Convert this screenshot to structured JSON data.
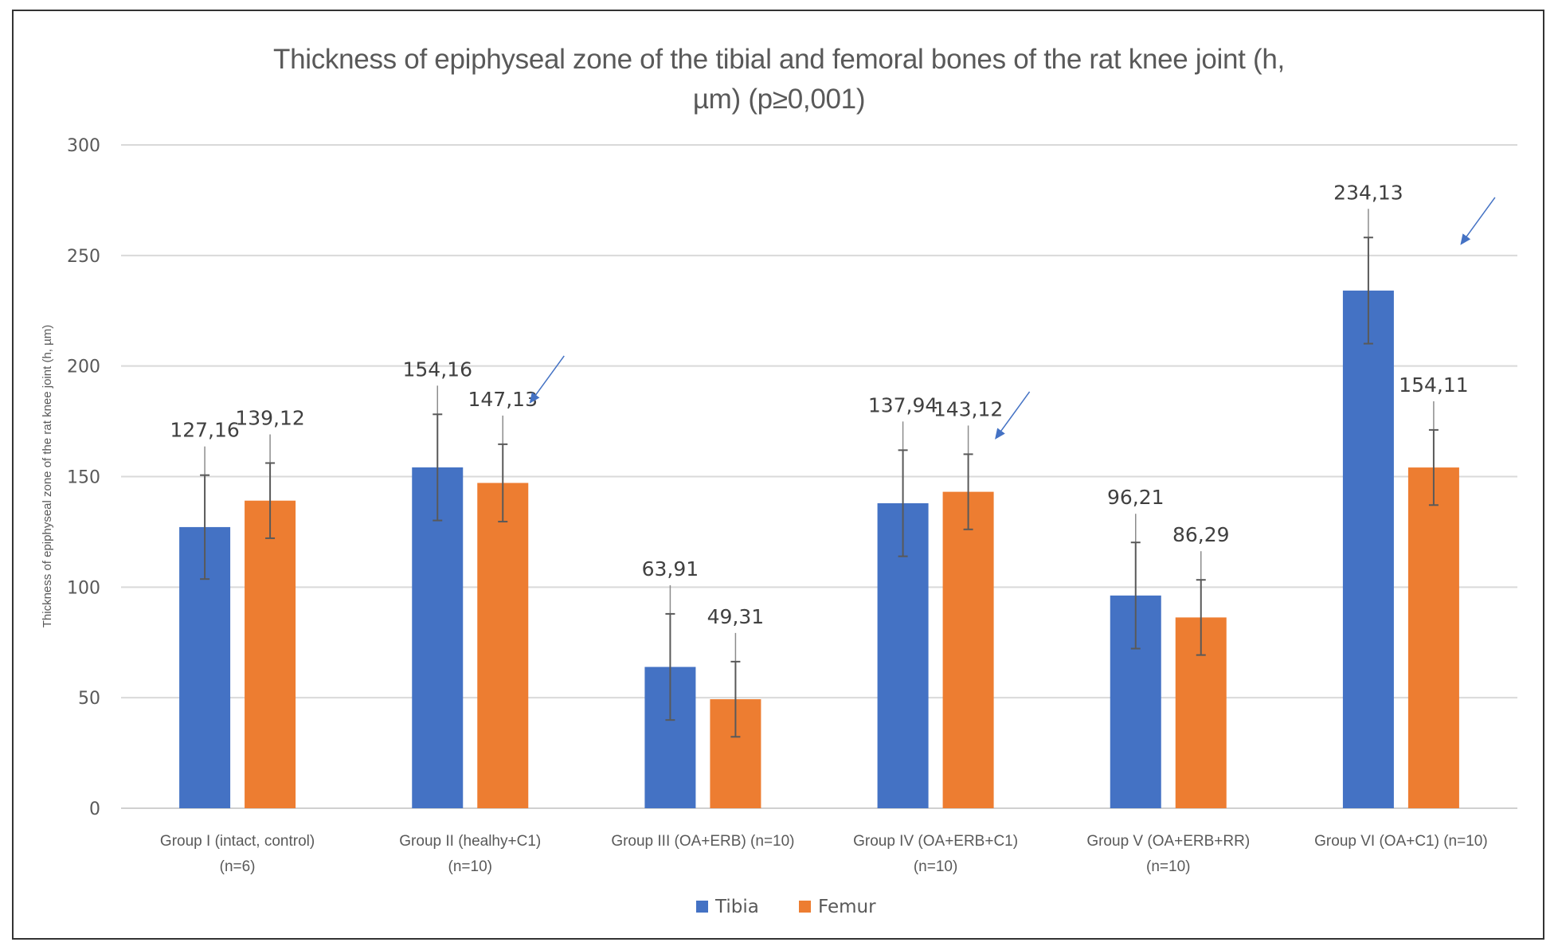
{
  "chart_data": {
    "type": "bar",
    "title_lines": [
      "Thickness of epiphyseal zone of the tibial and femoral bones of the rat knee joint (h,",
      "µm) (p≥0,001)"
    ],
    "xlabel": "",
    "ylabel": "Thickness of epiphyseal zone of the rat knee joint (h, µm)",
    "ylim": [
      0,
      300
    ],
    "yticks": [
      0,
      50,
      100,
      150,
      200,
      250,
      300
    ],
    "grid": true,
    "legend_position": "bottom",
    "categories": [
      [
        "Group I (intact, control)",
        "(n=6)"
      ],
      [
        "Group II (healhy+C1)",
        "(n=10)"
      ],
      [
        "Group III (OA+ERB) (n=10)"
      ],
      [
        "Group IV (OA+ERB+C1)",
        "(n=10)"
      ],
      [
        "Group V (OA+ERB+RR)",
        "(n=10)"
      ],
      [
        "Group VI (OA+C1) (n=10)"
      ]
    ],
    "series": [
      {
        "name": "Tibia",
        "color": "#4472C4",
        "values": [
          127.16,
          154.16,
          63.91,
          137.94,
          96.21,
          234.13
        ],
        "labels": [
          "127,16",
          "154,16",
          "63,91",
          "137,94",
          "96,21",
          "234,13"
        ],
        "error": [
          23.5,
          24,
          24,
          24,
          24,
          24
        ]
      },
      {
        "name": "Femur",
        "color": "#ED7D31",
        "values": [
          139.12,
          147.13,
          49.31,
          143.12,
          86.29,
          154.11
        ],
        "labels": [
          "139,12",
          "147,13",
          "49,31",
          "143,12",
          "86,29",
          "154,11"
        ],
        "error": [
          17,
          17.5,
          17,
          17,
          17,
          17
        ]
      }
    ],
    "annotations": [
      {
        "type": "arrow",
        "target_category_index": 1,
        "color": "#4472C4"
      },
      {
        "type": "arrow",
        "target_category_index": 3,
        "color": "#4472C4"
      },
      {
        "type": "arrow",
        "target_category_index": 5,
        "color": "#4472C4"
      }
    ]
  }
}
